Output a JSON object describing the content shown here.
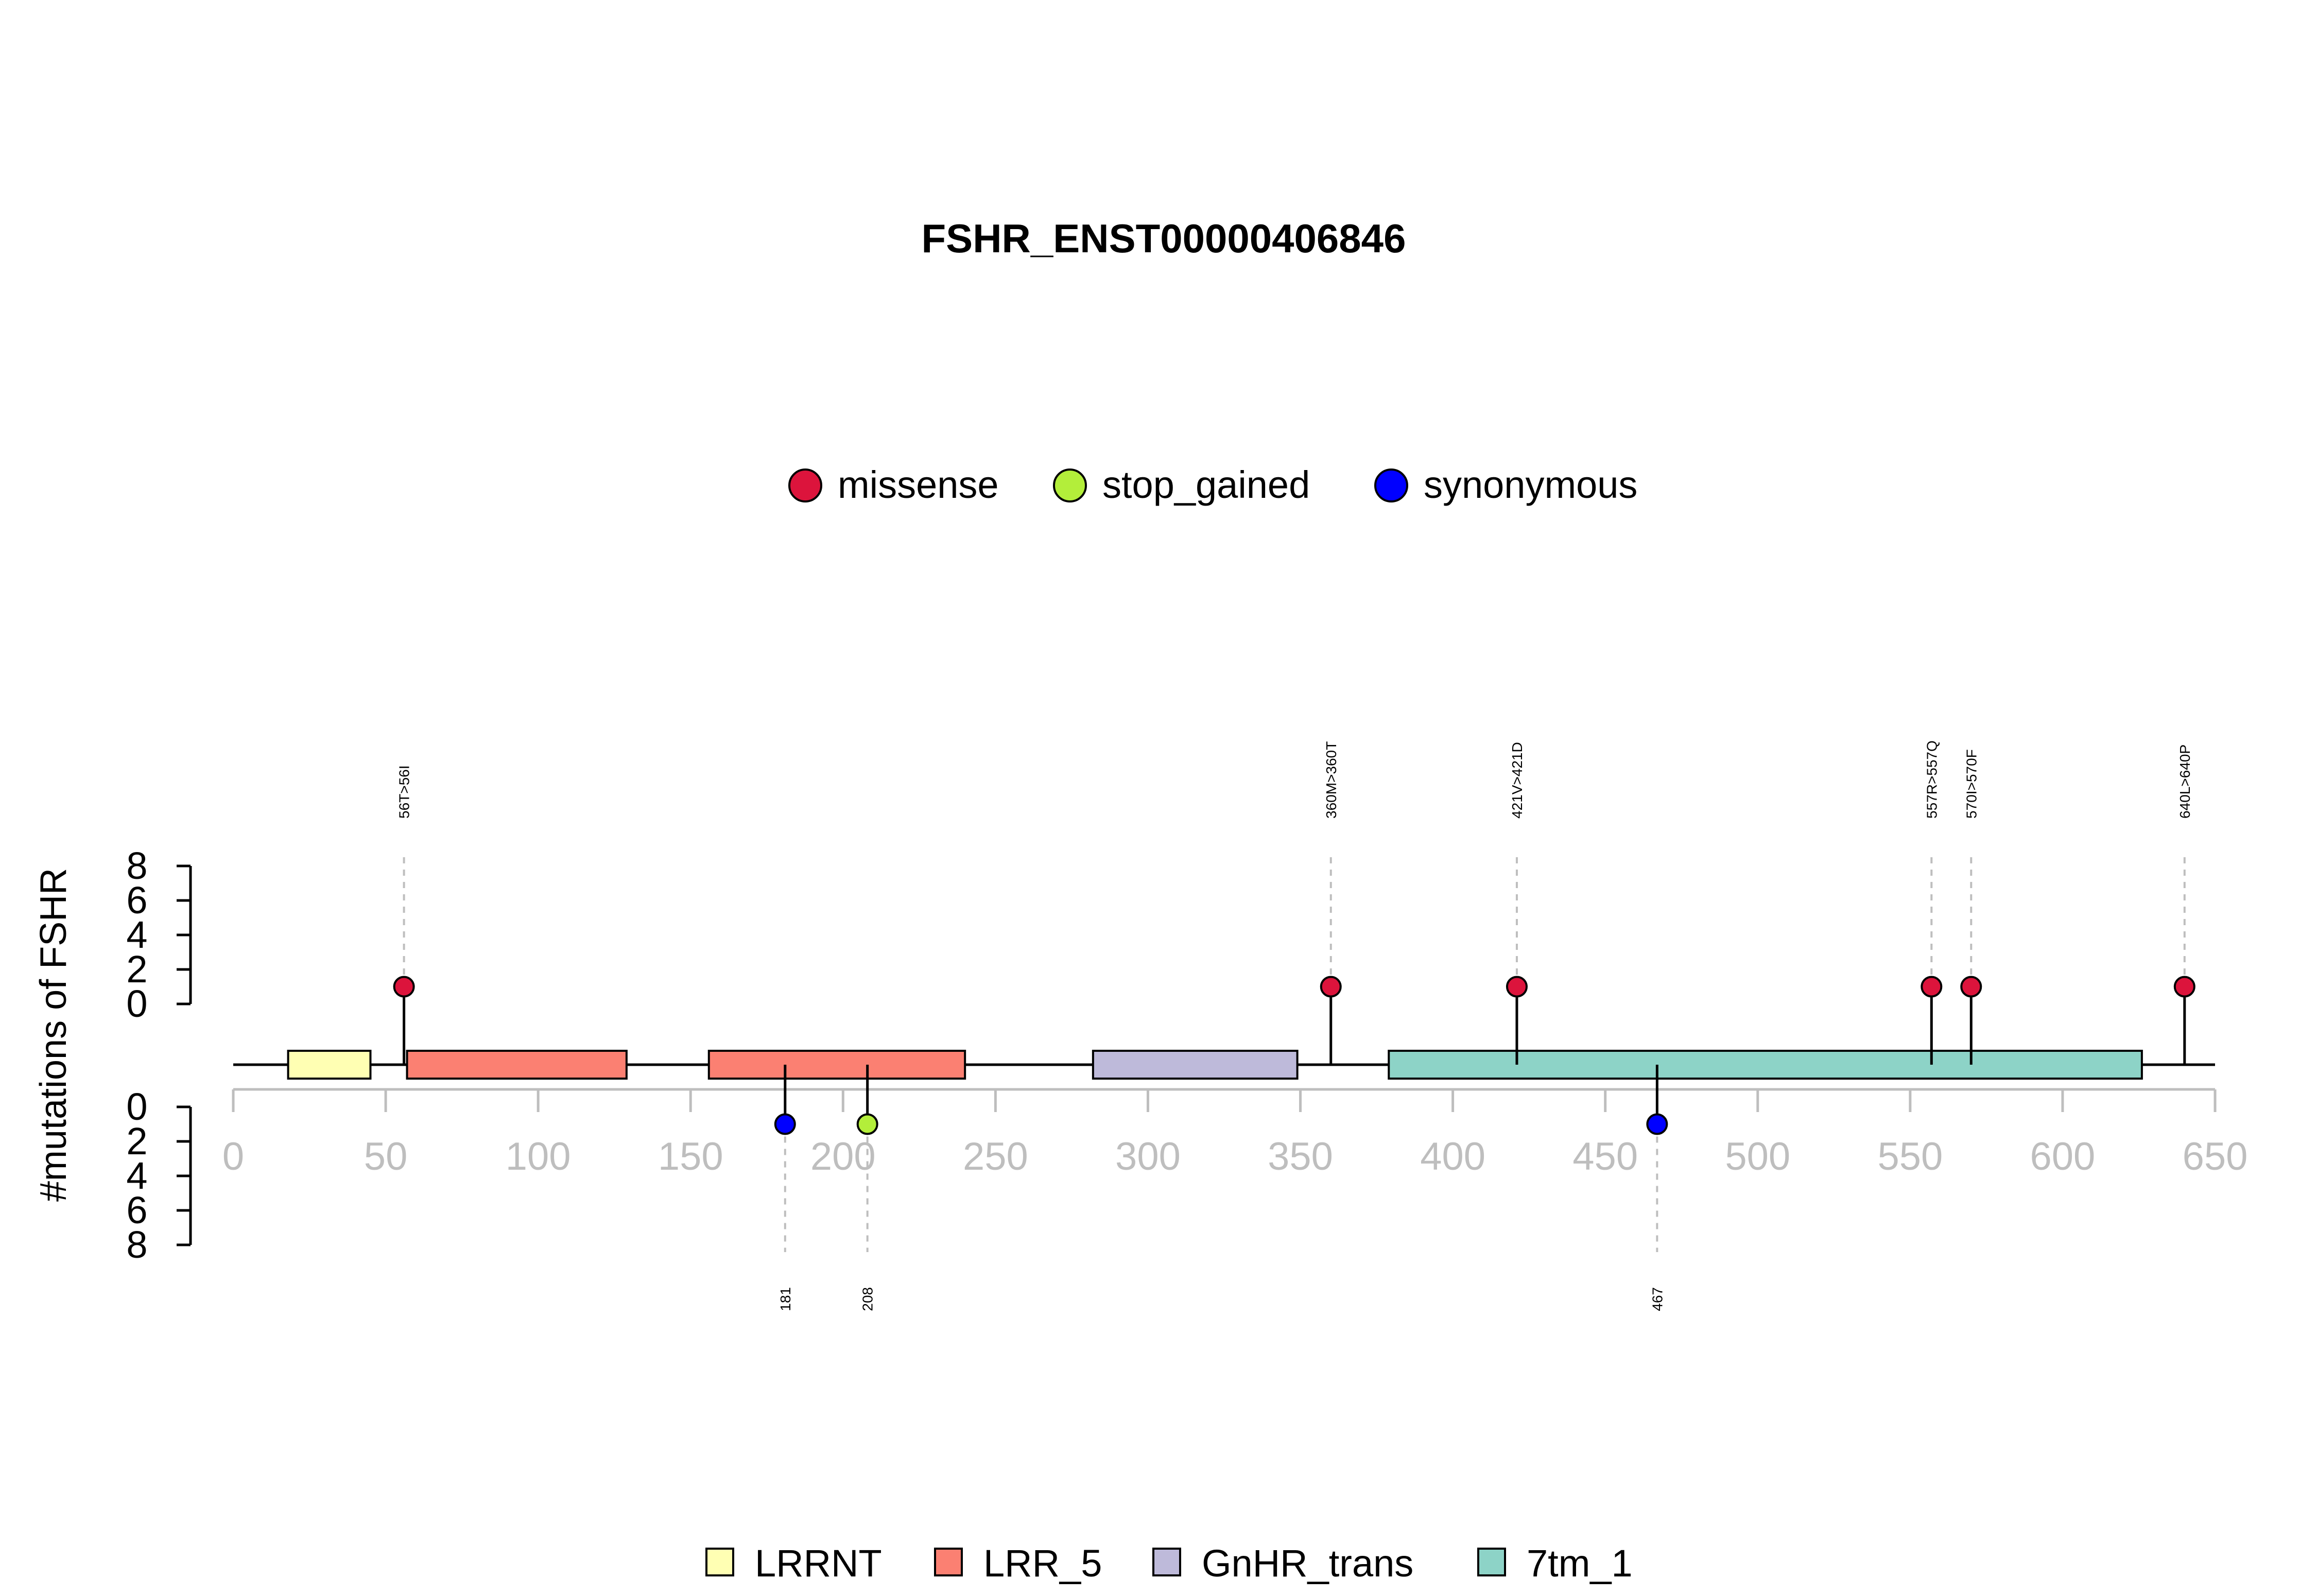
{
  "chart_data": {
    "type": "lollipop",
    "title": "FSHR_ENST00000406846",
    "ylabel": "#mutations of FSHR",
    "protein_length": 650,
    "x_ticks": [
      0,
      50,
      100,
      150,
      200,
      250,
      300,
      350,
      400,
      450,
      500,
      550,
      600,
      650
    ],
    "y_ticks_top": [
      0,
      2,
      4,
      6,
      8
    ],
    "y_ticks_bottom": [
      0,
      2,
      4,
      6,
      8
    ],
    "mutation_legend": [
      {
        "label": "missense",
        "color": "#DC143C"
      },
      {
        "label": "stop_gained",
        "color": "#B3EE3A"
      },
      {
        "label": "synonymous",
        "color": "#0000FF"
      }
    ],
    "domain_legend": [
      {
        "label": "LRRNT",
        "color": "#FFFFB3"
      },
      {
        "label": "LRR_5",
        "color": "#FB8072"
      },
      {
        "label": "GnHR_trans",
        "color": "#BEBADA"
      },
      {
        "label": "7tm_1",
        "color": "#8DD3C7"
      }
    ],
    "domains": [
      {
        "name": "LRRNT",
        "start": 18,
        "end": 45,
        "color": "#FFFFB3"
      },
      {
        "name": "LRR_5",
        "start": 57,
        "end": 129,
        "color": "#FB8072"
      },
      {
        "name": "LRR_5",
        "start": 156,
        "end": 240,
        "color": "#FB8072"
      },
      {
        "name": "GnHR_trans",
        "start": 282,
        "end": 349,
        "color": "#BEBADA"
      },
      {
        "name": "7tm_1",
        "start": 379,
        "end": 626,
        "color": "#8DD3C7"
      }
    ],
    "mutations_top": [
      {
        "pos": 56,
        "count": 1,
        "label": "56T>56I",
        "type": "missense"
      },
      {
        "pos": 360,
        "count": 1,
        "label": "360M>360T",
        "type": "missense"
      },
      {
        "pos": 421,
        "count": 1,
        "label": "421V>421D",
        "type": "missense"
      },
      {
        "pos": 557,
        "count": 1,
        "label": "557R>557Q",
        "type": "missense"
      },
      {
        "pos": 570,
        "count": 1,
        "label": "570I>570F",
        "type": "missense"
      },
      {
        "pos": 640,
        "count": 1,
        "label": "640L>640P",
        "type": "missense"
      }
    ],
    "mutations_bottom": [
      {
        "pos": 181,
        "count": 1,
        "label": "181",
        "type": "synonymous"
      },
      {
        "pos": 208,
        "count": 1,
        "label": "208",
        "type": "stop_gained"
      },
      {
        "pos": 467,
        "count": 1,
        "label": "467",
        "type": "synonymous"
      }
    ]
  }
}
